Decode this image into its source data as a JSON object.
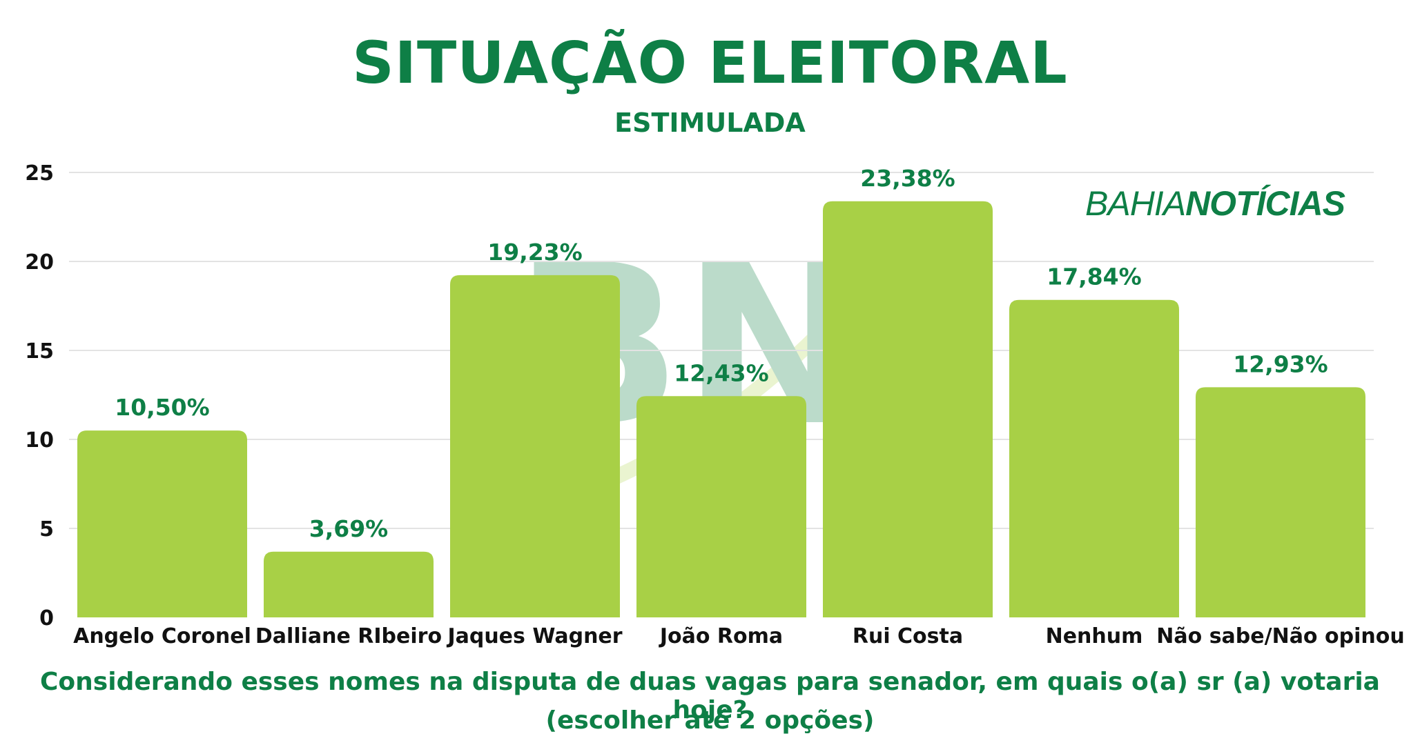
{
  "header": {
    "title": "SITUAÇÃO ELEITORAL",
    "subtitle": "ESTIMULADA"
  },
  "brand": {
    "part1": "BAHIA",
    "part2": "NOTÍCIAS",
    "watermark": "BN"
  },
  "footer": {
    "line1": "Considerando esses nomes na disputa de duas vagas para senador, em quais o(a) sr (a) votaria hoje?",
    "line2": "(escolher até 2 opções)"
  },
  "colors": {
    "bar": "#a8d046",
    "accent": "#0e7f46",
    "grid": "#e3e3e3",
    "watermark": "#0e7f46"
  },
  "chart_data": {
    "type": "bar",
    "title": "SITUAÇÃO ELEITORAL",
    "subtitle": "ESTIMULADA",
    "xlabel": "",
    "ylabel": "",
    "categories": [
      "Angelo Coronel",
      "Dalliane RIbeiro",
      "Jaques Wagner",
      "João Roma",
      "Rui Costa",
      "Nenhum",
      "Não sabe/Não opinou"
    ],
    "values": [
      10.5,
      3.69,
      19.23,
      12.43,
      23.38,
      17.84,
      12.93
    ],
    "data_labels": [
      "10,50%",
      "3,69%",
      "19,23%",
      "12,43%",
      "23,38%",
      "17,84%",
      "12,93%"
    ],
    "yticks": [
      0,
      5,
      10,
      15,
      20,
      25
    ],
    "ylim": [
      0,
      25
    ],
    "grid": true,
    "legend": "none"
  }
}
